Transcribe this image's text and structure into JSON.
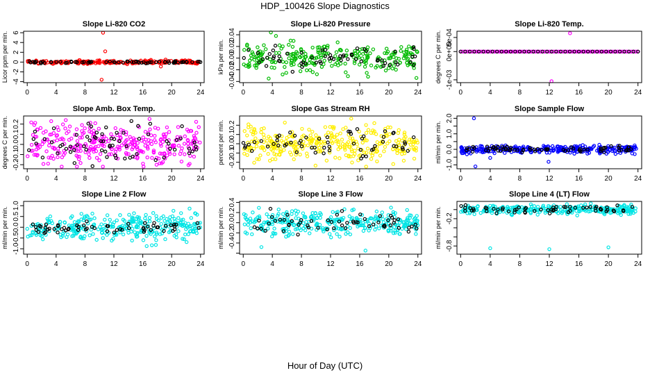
{
  "title": "HDP_100426  Slope Diagnostics",
  "xlabel": "Hour of Day (UTC)",
  "chart_data": [
    {
      "type": "scatter",
      "title": "Slope Li-820 CO2",
      "ylabel": "Licor ppm per min.",
      "color": "#ff0000",
      "xlim": [
        -0.5,
        24.5
      ],
      "ylim": [
        -4.2,
        6.3
      ],
      "xticks": [
        0,
        4,
        8,
        12,
        16,
        20,
        24
      ],
      "yticks": [
        -4,
        -2,
        0,
        2,
        4,
        6
      ],
      "ytick_labels": [
        "-4",
        "-2",
        "0",
        "2",
        "4",
        "6"
      ],
      "noise": 0.18,
      "black_noise": 0.12,
      "outliers": [
        {
          "x": 10.5,
          "y": 6.0
        },
        {
          "x": 10.8,
          "y": 2.2
        },
        {
          "x": 10.3,
          "y": -3.6
        },
        {
          "x": 18.5,
          "y": -0.9
        }
      ],
      "n": 220,
      "nblack": 70
    },
    {
      "type": "scatter",
      "title": "Slope Li-820 Pressure",
      "ylabel": "kPa per min.",
      "color": "#00bb00",
      "xlim": [
        -0.5,
        24.5
      ],
      "ylim": [
        -0.042,
        0.046
      ],
      "xticks": [
        0,
        4,
        8,
        12,
        16,
        20,
        24
      ],
      "yticks": [
        -0.04,
        -0.02,
        0,
        0.02,
        0.04
      ],
      "ytick_labels": [
        "-0.04",
        "-0.02",
        "0.00",
        "0.02",
        "0.04"
      ],
      "noise": 0.012,
      "black_noise": 0.009,
      "outliers": [
        {
          "x": 3.8,
          "y": 0.044
        },
        {
          "x": 4.5,
          "y": 0.038
        },
        {
          "x": 3.5,
          "y": -0.035
        },
        {
          "x": 23.8,
          "y": -0.034
        }
      ],
      "n": 260,
      "nblack": 60
    },
    {
      "type": "scatter",
      "title": "Slope Li-820 Temp.",
      "ylabel": "degrees C per min.",
      "color": "#ff00ff",
      "xlim": [
        -0.5,
        24.5
      ],
      "ylim": [
        -0.0011,
        0.00072
      ],
      "xticks": [
        0,
        4,
        8,
        12,
        16,
        20,
        24
      ],
      "yticks": [
        -0.001,
        0,
        0.0005
      ],
      "ytick_labels": [
        "-1e-03",
        "0e+00",
        "5e-04"
      ],
      "noise": 0.0,
      "black_noise": 0.0,
      "outliers": [
        {
          "x": 14.8,
          "y": 0.00065
        },
        {
          "x": 12.3,
          "y": -0.00105
        }
      ],
      "n": 120,
      "nblack": 40
    },
    {
      "type": "scatter",
      "title": "Slope Amb. Box Temp.",
      "ylabel": "degrees C per min.",
      "color": "#ff00ff",
      "xlim": [
        -0.5,
        24.5
      ],
      "ylim": [
        -0.24,
        0.28
      ],
      "xticks": [
        0,
        4,
        8,
        12,
        16,
        20,
        24
      ],
      "yticks": [
        -0.2,
        -0.1,
        0,
        0.1,
        0.2
      ],
      "ytick_labels": [
        "-0.2",
        "-0.1",
        "0.0",
        "0.1",
        "0.2"
      ],
      "noise": 0.095,
      "black_noise": 0.09,
      "outliers": [],
      "n": 320,
      "nblack": 70
    },
    {
      "type": "scatter",
      "title": "Slope Gas Stream RH",
      "ylabel": "percent per min.",
      "color": "#ffee00",
      "xlim": [
        -0.5,
        24.5
      ],
      "ylim": [
        -0.27,
        0.3
      ],
      "xticks": [
        0,
        4,
        8,
        12,
        16,
        20,
        24
      ],
      "yticks": [
        -0.2,
        -0.1,
        0,
        0.1,
        0.2
      ],
      "ytick_labels": [
        "-0.2",
        "-0.1",
        "0.0",
        "0.1",
        "0.2"
      ],
      "noise": 0.09,
      "black_noise": 0.08,
      "outliers": [],
      "n": 320,
      "nblack": 60
    },
    {
      "type": "scatter",
      "title": "Slope Sample Flow",
      "ylabel": "ml/min per min.",
      "color": "#0000ff",
      "xlim": [
        -0.5,
        24.5
      ],
      "ylim": [
        -1.25,
        2.15
      ],
      "xticks": [
        0,
        4,
        8,
        12,
        16,
        20,
        24
      ],
      "yticks": [
        -1,
        -0.5,
        0,
        0.5,
        1,
        1.5,
        2
      ],
      "ytick_labels": [
        "-1.0",
        "",
        "0.0",
        "",
        "1.0",
        "",
        "2.0"
      ],
      "noise": 0.12,
      "black_noise": 0.1,
      "outliers": [
        {
          "x": 1.8,
          "y": 2.0
        },
        {
          "x": 2.0,
          "y": -1.1
        },
        {
          "x": 11.9,
          "y": -0.8
        },
        {
          "x": 4.0,
          "y": -0.55
        }
      ],
      "n": 300,
      "nblack": 70
    },
    {
      "type": "scatter",
      "title": "Slope Line 2 Flow",
      "ylabel": "ml/min per min.",
      "color": "#00e5e5",
      "xlim": [
        -0.5,
        24.5
      ],
      "ylim": [
        -1.25,
        1.2
      ],
      "xticks": [
        0,
        4,
        8,
        12,
        16,
        20,
        24
      ],
      "yticks": [
        -1,
        -0.5,
        0,
        0.5,
        1
      ],
      "ytick_labels": [
        "-1.0",
        "-0.5",
        "0.0",
        "0.5",
        "1.0"
      ],
      "noise": 0.3,
      "black_noise": 0.12,
      "outliers": [],
      "n": 320,
      "nblack": 60
    },
    {
      "type": "scatter",
      "title": "Slope Line 3 Flow",
      "ylabel": "ml/min per min.",
      "color": "#00e5e5",
      "xlim": [
        -0.5,
        24.5
      ],
      "ylim": [
        -0.62,
        0.42
      ],
      "xticks": [
        0,
        4,
        8,
        12,
        16,
        20,
        24
      ],
      "yticks": [
        -0.6,
        -0.4,
        -0.2,
        0,
        0.2,
        0.4
      ],
      "ytick_labels": [
        "",
        "-0.4",
        "-0.2",
        "0.0",
        "0.2",
        "0.4"
      ],
      "noise": 0.12,
      "black_noise": 0.1,
      "outliers": [
        {
          "x": 2.5,
          "y": -0.48
        },
        {
          "x": 16.8,
          "y": -0.55
        }
      ],
      "n": 320,
      "nblack": 60
    },
    {
      "type": "scatter",
      "title": "Slope Line 4 (LT) Flow",
      "ylabel": "ml/min per min.",
      "color": "#00e5e5",
      "xlim": [
        -0.5,
        24.5
      ],
      "ylim": [
        -0.98,
        0.18
      ],
      "xticks": [
        0,
        4,
        8,
        12,
        16,
        20,
        24
      ],
      "yticks": [
        -0.8,
        -0.6,
        -0.4,
        -0.2,
        0
      ],
      "ytick_labels": [
        "-0.8",
        "",
        "",
        "-0.2",
        ""
      ],
      "noise": 0.05,
      "black_noise": 0.04,
      "outliers": [
        {
          "x": 4.0,
          "y": -0.85
        },
        {
          "x": 12.0,
          "y": -0.87
        },
        {
          "x": 20.0,
          "y": -0.83
        }
      ],
      "n": 300,
      "nblack": 60
    }
  ]
}
